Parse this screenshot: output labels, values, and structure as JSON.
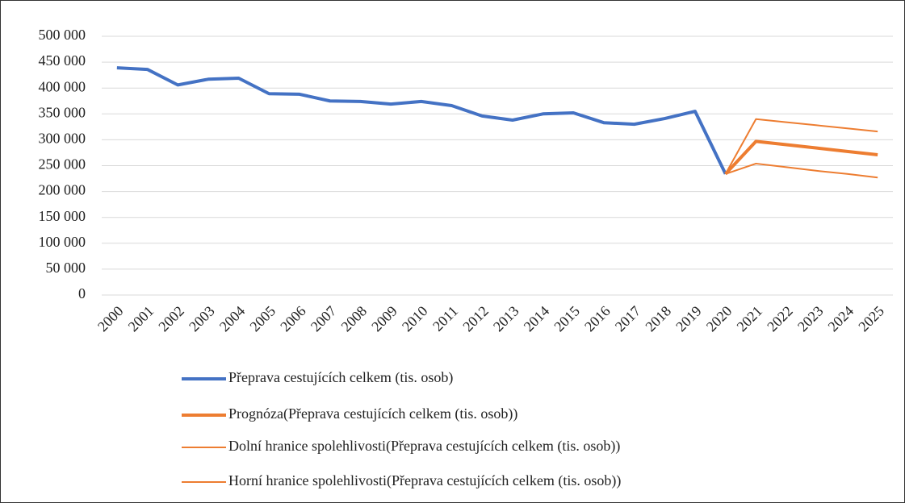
{
  "chart_data": {
    "type": "line",
    "categories": [
      "2000",
      "2001",
      "2002",
      "2003",
      "2004",
      "2005",
      "2006",
      "2007",
      "2008",
      "2009",
      "2010",
      "2011",
      "2012",
      "2013",
      "2014",
      "2015",
      "2016",
      "2017",
      "2018",
      "2019",
      "2020",
      "2021",
      "2022",
      "2023",
      "2024",
      "2025"
    ],
    "series": [
      {
        "name": "Přeprava cestujících celkem (tis. osob)",
        "color": "#4472c4",
        "values": [
          439000,
          436000,
          406000,
          417000,
          419000,
          389000,
          388000,
          375000,
          374000,
          369000,
          374000,
          366000,
          346000,
          338000,
          350000,
          352000,
          333000,
          330000,
          341000,
          355000,
          234000,
          null,
          null,
          null,
          null,
          null
        ]
      },
      {
        "name": "Prognóza(Přeprava cestujících celkem (tis. osob))",
        "color": "#ed7d31",
        "values": [
          null,
          null,
          null,
          null,
          null,
          null,
          null,
          null,
          null,
          null,
          null,
          null,
          null,
          null,
          null,
          null,
          null,
          null,
          null,
          null,
          234000,
          297000,
          290500,
          284000,
          277500,
          271000
        ]
      },
      {
        "name": "Dolní hranice spolehlivosti(Přeprava cestujících celkem (tis. osob))",
        "color": "#ed7d31",
        "values": [
          null,
          null,
          null,
          null,
          null,
          null,
          null,
          null,
          null,
          null,
          null,
          null,
          null,
          null,
          null,
          null,
          null,
          null,
          null,
          null,
          234000,
          254000,
          247000,
          240000,
          234000,
          227000
        ]
      },
      {
        "name": "Horní hranice spolehlivosti(Přeprava cestujících celkem (tis. osob))",
        "color": "#ed7d31",
        "values": [
          null,
          null,
          null,
          null,
          null,
          null,
          null,
          null,
          null,
          null,
          null,
          null,
          null,
          null,
          null,
          null,
          null,
          null,
          null,
          null,
          234000,
          340000,
          334000,
          328000,
          322000,
          316000
        ]
      }
    ],
    "ylim": [
      0,
      500000
    ],
    "yticks": [
      0,
      {
        "value": 50000,
        "label": "50 000"
      },
      {
        "value": 100000,
        "label": "100 000"
      },
      {
        "value": 150000,
        "label": "150 000"
      },
      {
        "value": 200000,
        "label": "200 000"
      },
      {
        "value": 250000,
        "label": "250 000"
      },
      {
        "value": 300000,
        "label": "300 000"
      },
      {
        "value": 350000,
        "label": "350 000"
      },
      {
        "value": 400000,
        "label": "400 000"
      },
      {
        "value": 450000,
        "label": "450 000"
      },
      {
        "value": 500000,
        "label": "500 000"
      }
    ],
    "grid": true
  }
}
